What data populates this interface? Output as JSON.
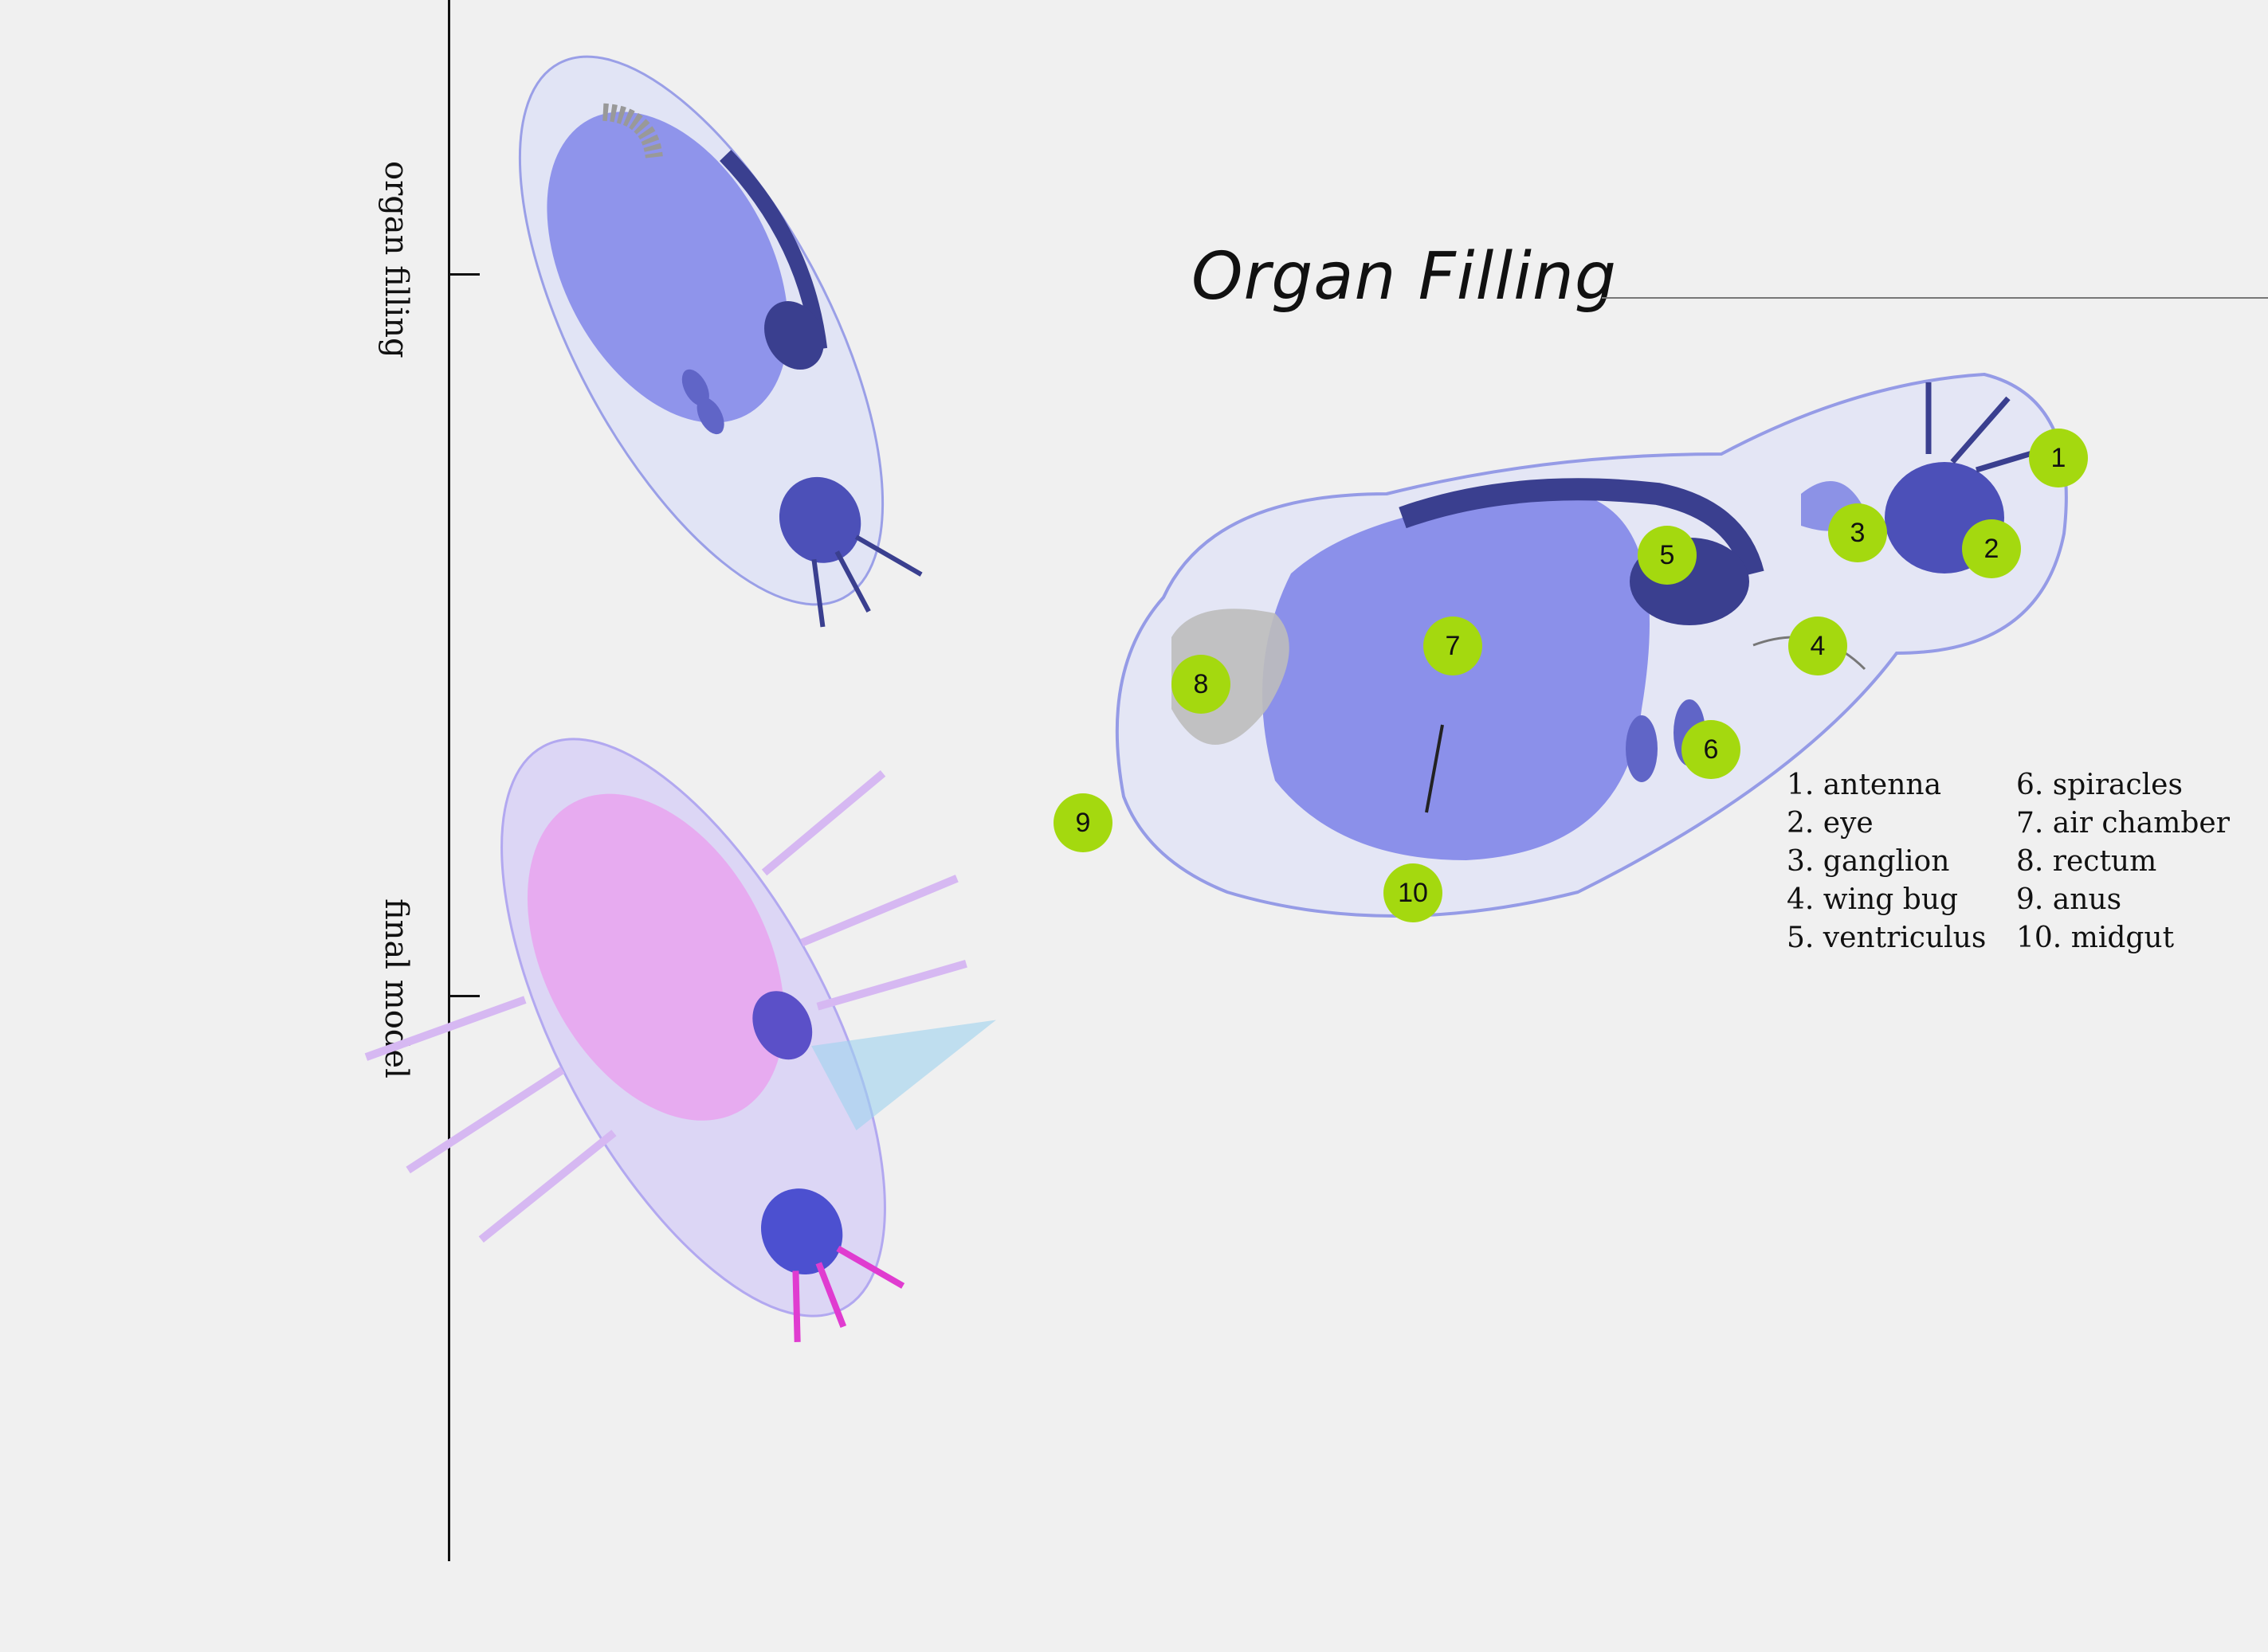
{
  "timeline": {
    "stages": [
      {
        "label": "organ filling"
      },
      {
        "label": "final model"
      }
    ]
  },
  "title": "Organ Filling",
  "markers": [
    {
      "num": "1",
      "part": "antenna"
    },
    {
      "num": "2",
      "part": "eye"
    },
    {
      "num": "3",
      "part": "ganglion"
    },
    {
      "num": "4",
      "part": "wing bug"
    },
    {
      "num": "5",
      "part": "ventriculus"
    },
    {
      "num": "6",
      "part": "spiracles"
    },
    {
      "num": "7",
      "part": "air chamber"
    },
    {
      "num": "8",
      "part": "rectum"
    },
    {
      "num": "9",
      "part": "anus"
    },
    {
      "num": "10",
      "part": "midgut"
    }
  ],
  "legend": {
    "left": [
      "1. antenna",
      "2. eye",
      "3. ganglion",
      "4. wing bug",
      "5. ventriculus"
    ],
    "right": [
      "6. spiracles",
      "7. air chamber",
      "8. rectum",
      "9. anus",
      "10. midgut"
    ]
  },
  "colors": {
    "marker": "#a4d90f",
    "organ_blue": "#7b80e8",
    "dark_organ": "#3a3f8f",
    "pink": "#e8a6f0"
  }
}
